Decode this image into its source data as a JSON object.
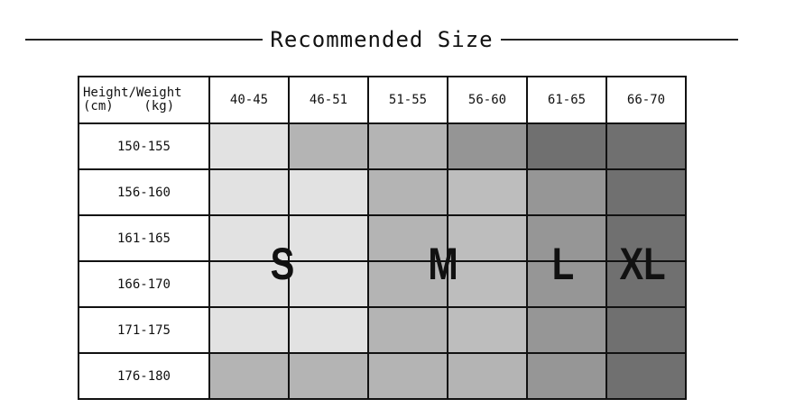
{
  "title": "Recommended Size",
  "corner": {
    "line1": "Height/Weight",
    "line2": "(cm)    (kg)"
  },
  "weights": [
    "40-45",
    "46-51",
    "51-55",
    "56-60",
    "61-65",
    "66-70"
  ],
  "heights": [
    "150-155",
    "156-160",
    "161-165",
    "166-170",
    "171-175",
    "176-180"
  ],
  "cell_colors": [
    [
      "#e2e2e2",
      "#b4b4b4",
      "#b4b4b4",
      "#959595",
      "#707070",
      "#707070"
    ],
    [
      "#e2e2e2",
      "#e2e2e2",
      "#b4b4b4",
      "#bdbdbd",
      "#969696",
      "#707070"
    ],
    [
      "#e2e2e2",
      "#e2e2e2",
      "#b4b4b4",
      "#bdbdbd",
      "#969696",
      "#707070"
    ],
    [
      "#e2e2e2",
      "#e2e2e2",
      "#b4b4b4",
      "#bdbdbd",
      "#969696",
      "#707070"
    ],
    [
      "#e2e2e2",
      "#e2e2e2",
      "#b4b4b4",
      "#bdbdbd",
      "#969696",
      "#707070"
    ],
    [
      "#b4b4b4",
      "#b4b4b4",
      "#b4b4b4",
      "#b4b4b4",
      "#969696",
      "#707070"
    ]
  ],
  "sizes": [
    "S",
    "M",
    "L",
    "XL"
  ]
}
